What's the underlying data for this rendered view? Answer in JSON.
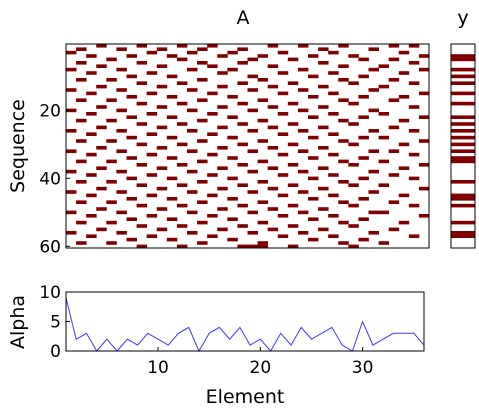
{
  "colors": {
    "cell": "#800000",
    "line": "#3b3bff",
    "axis": "#000000",
    "background": "#ffffff"
  },
  "chart_data": [
    {
      "type": "heatmap",
      "title": "A",
      "xlabel": "",
      "ylabel": "Sequence",
      "xlim": [
        0.5,
        36.5
      ],
      "ylim": [
        60.5,
        0.5
      ],
      "yticks": [
        20,
        40,
        60
      ],
      "rows": 60,
      "cols": 36,
      "cells": [
        [
          1,
          4
        ],
        [
          1,
          8
        ],
        [
          1,
          12
        ],
        [
          1,
          15
        ],
        [
          1,
          21
        ],
        [
          1,
          24
        ],
        [
          1,
          28
        ],
        [
          1,
          33
        ],
        [
          1,
          35
        ],
        [
          2,
          2
        ],
        [
          2,
          6
        ],
        [
          2,
          10
        ],
        [
          2,
          14
        ],
        [
          2,
          18
        ],
        [
          2,
          26
        ],
        [
          2,
          31
        ],
        [
          3,
          1
        ],
        [
          3,
          9
        ],
        [
          3,
          13
        ],
        [
          3,
          17
        ],
        [
          3,
          22
        ],
        [
          3,
          27
        ],
        [
          3,
          34
        ],
        [
          4,
          3
        ],
        [
          4,
          7
        ],
        [
          4,
          11
        ],
        [
          4,
          16
        ],
        [
          4,
          20
        ],
        [
          4,
          25
        ],
        [
          4,
          29
        ],
        [
          4,
          36
        ],
        [
          5,
          5
        ],
        [
          5,
          12
        ],
        [
          5,
          19
        ],
        [
          5,
          23
        ],
        [
          5,
          30
        ],
        [
          5,
          33
        ],
        [
          6,
          2
        ],
        [
          6,
          8
        ],
        [
          6,
          14
        ],
        [
          6,
          18
        ],
        [
          6,
          26
        ],
        [
          6,
          35
        ],
        [
          7,
          4
        ],
        [
          7,
          10
        ],
        [
          7,
          15
        ],
        [
          7,
          21
        ],
        [
          7,
          28
        ],
        [
          7,
          32
        ],
        [
          8,
          1
        ],
        [
          8,
          6
        ],
        [
          8,
          13
        ],
        [
          8,
          17
        ],
        [
          8,
          24
        ],
        [
          8,
          31
        ],
        [
          8,
          36
        ],
        [
          9,
          3
        ],
        [
          9,
          9
        ],
        [
          9,
          16
        ],
        [
          9,
          22
        ],
        [
          9,
          27
        ],
        [
          9,
          34
        ],
        [
          10,
          7
        ],
        [
          10,
          11
        ],
        [
          10,
          19
        ],
        [
          10,
          25
        ],
        [
          10,
          30
        ],
        [
          11,
          2
        ],
        [
          11,
          5
        ],
        [
          11,
          14
        ],
        [
          11,
          20
        ],
        [
          11,
          28
        ],
        [
          11,
          33
        ],
        [
          12,
          8
        ],
        [
          12,
          12
        ],
        [
          12,
          18
        ],
        [
          12,
          23
        ],
        [
          12,
          29
        ],
        [
          12,
          35
        ],
        [
          13,
          4
        ],
        [
          13,
          10
        ],
        [
          13,
          16
        ],
        [
          13,
          21
        ],
        [
          13,
          26
        ],
        [
          13,
          32
        ],
        [
          14,
          1
        ],
        [
          14,
          6
        ],
        [
          14,
          13
        ],
        [
          14,
          19
        ],
        [
          14,
          24
        ],
        [
          14,
          31
        ],
        [
          15,
          3
        ],
        [
          15,
          9
        ],
        [
          15,
          15
        ],
        [
          15,
          22
        ],
        [
          15,
          27
        ],
        [
          15,
          36
        ],
        [
          16,
          7
        ],
        [
          16,
          11
        ],
        [
          16,
          17
        ],
        [
          16,
          25
        ],
        [
          16,
          30
        ],
        [
          16,
          34
        ],
        [
          17,
          2
        ],
        [
          17,
          5
        ],
        [
          17,
          14
        ],
        [
          17,
          20
        ],
        [
          17,
          28
        ],
        [
          17,
          33
        ],
        [
          18,
          8
        ],
        [
          18,
          12
        ],
        [
          18,
          18
        ],
        [
          18,
          23
        ],
        [
          18,
          29
        ],
        [
          19,
          4
        ],
        [
          19,
          10
        ],
        [
          19,
          16
        ],
        [
          19,
          21
        ],
        [
          19,
          26
        ],
        [
          19,
          35
        ],
        [
          20,
          1
        ],
        [
          20,
          6
        ],
        [
          20,
          13
        ],
        [
          20,
          19
        ],
        [
          20,
          24
        ],
        [
          20,
          31
        ],
        [
          21,
          3
        ],
        [
          21,
          9
        ],
        [
          21,
          15
        ],
        [
          21,
          22
        ],
        [
          21,
          27
        ],
        [
          21,
          32
        ],
        [
          22,
          7
        ],
        [
          22,
          11
        ],
        [
          22,
          17
        ],
        [
          22,
          25
        ],
        [
          22,
          30
        ],
        [
          22,
          36
        ],
        [
          23,
          2
        ],
        [
          23,
          5
        ],
        [
          23,
          14
        ],
        [
          23,
          20
        ],
        [
          23,
          28
        ],
        [
          23,
          34
        ],
        [
          24,
          8
        ],
        [
          24,
          12
        ],
        [
          24,
          18
        ],
        [
          24,
          23
        ],
        [
          24,
          29
        ],
        [
          25,
          4
        ],
        [
          25,
          10
        ],
        [
          25,
          16
        ],
        [
          25,
          21
        ],
        [
          25,
          26
        ],
        [
          25,
          33
        ],
        [
          26,
          1
        ],
        [
          26,
          6
        ],
        [
          26,
          13
        ],
        [
          26,
          19
        ],
        [
          26,
          24
        ],
        [
          26,
          31
        ],
        [
          26,
          35
        ],
        [
          27,
          3
        ],
        [
          27,
          9
        ],
        [
          27,
          15
        ],
        [
          27,
          22
        ],
        [
          27,
          27
        ],
        [
          28,
          7
        ],
        [
          28,
          11
        ],
        [
          28,
          17
        ],
        [
          28,
          25
        ],
        [
          28,
          30
        ],
        [
          28,
          32
        ],
        [
          29,
          2
        ],
        [
          29,
          5
        ],
        [
          29,
          14
        ],
        [
          29,
          20
        ],
        [
          29,
          28
        ],
        [
          29,
          36
        ],
        [
          30,
          8
        ],
        [
          30,
          12
        ],
        [
          30,
          18
        ],
        [
          30,
          23
        ],
        [
          30,
          29
        ],
        [
          30,
          34
        ],
        [
          31,
          4
        ],
        [
          31,
          10
        ],
        [
          31,
          16
        ],
        [
          31,
          21
        ],
        [
          31,
          26
        ],
        [
          32,
          1
        ],
        [
          32,
          6
        ],
        [
          32,
          13
        ],
        [
          32,
          19
        ],
        [
          32,
          24
        ],
        [
          32,
          31
        ],
        [
          32,
          33
        ],
        [
          33,
          3
        ],
        [
          33,
          9
        ],
        [
          33,
          15
        ],
        [
          33,
          22
        ],
        [
          33,
          27
        ],
        [
          33,
          35
        ],
        [
          34,
          7
        ],
        [
          34,
          11
        ],
        [
          34,
          17
        ],
        [
          34,
          25
        ],
        [
          34,
          30
        ],
        [
          35,
          2
        ],
        [
          35,
          5
        ],
        [
          35,
          14
        ],
        [
          35,
          20
        ],
        [
          35,
          28
        ],
        [
          35,
          32
        ],
        [
          36,
          8
        ],
        [
          36,
          12
        ],
        [
          36,
          18
        ],
        [
          36,
          23
        ],
        [
          36,
          29
        ],
        [
          36,
          36
        ],
        [
          37,
          4
        ],
        [
          37,
          10
        ],
        [
          37,
          16
        ],
        [
          37,
          21
        ],
        [
          37,
          26
        ],
        [
          37,
          34
        ],
        [
          38,
          1
        ],
        [
          38,
          6
        ],
        [
          38,
          13
        ],
        [
          38,
          19
        ],
        [
          38,
          24
        ],
        [
          38,
          31
        ],
        [
          39,
          3
        ],
        [
          39,
          9
        ],
        [
          39,
          15
        ],
        [
          39,
          22
        ],
        [
          39,
          27
        ],
        [
          39,
          33
        ],
        [
          40,
          7
        ],
        [
          40,
          11
        ],
        [
          40,
          17
        ],
        [
          40,
          25
        ],
        [
          40,
          30
        ],
        [
          40,
          35
        ],
        [
          41,
          2
        ],
        [
          41,
          5
        ],
        [
          41,
          14
        ],
        [
          41,
          20
        ],
        [
          41,
          28
        ],
        [
          42,
          8
        ],
        [
          42,
          12
        ],
        [
          42,
          18
        ],
        [
          42,
          23
        ],
        [
          42,
          29
        ],
        [
          42,
          32
        ],
        [
          43,
          4
        ],
        [
          43,
          10
        ],
        [
          43,
          16
        ],
        [
          43,
          21
        ],
        [
          43,
          26
        ],
        [
          43,
          36
        ],
        [
          44,
          1
        ],
        [
          44,
          6
        ],
        [
          44,
          13
        ],
        [
          44,
          19
        ],
        [
          44,
          24
        ],
        [
          44,
          31
        ],
        [
          45,
          3
        ],
        [
          45,
          9
        ],
        [
          45,
          15
        ],
        [
          45,
          22
        ],
        [
          45,
          27
        ],
        [
          45,
          34
        ],
        [
          46,
          7
        ],
        [
          46,
          11
        ],
        [
          46,
          17
        ],
        [
          46,
          25
        ],
        [
          46,
          30
        ],
        [
          47,
          2
        ],
        [
          47,
          5
        ],
        [
          47,
          14
        ],
        [
          47,
          20
        ],
        [
          47,
          28
        ],
        [
          47,
          33
        ],
        [
          48,
          8
        ],
        [
          48,
          12
        ],
        [
          48,
          18
        ],
        [
          48,
          23
        ],
        [
          48,
          29
        ],
        [
          48,
          35
        ],
        [
          49,
          4
        ],
        [
          49,
          10
        ],
        [
          49,
          16
        ],
        [
          49,
          21
        ],
        [
          49,
          26
        ],
        [
          50,
          1
        ],
        [
          50,
          6
        ],
        [
          50,
          13
        ],
        [
          50,
          19
        ],
        [
          50,
          24
        ],
        [
          50,
          31
        ],
        [
          50,
          32
        ],
        [
          51,
          3
        ],
        [
          51,
          9
        ],
        [
          51,
          15
        ],
        [
          51,
          22
        ],
        [
          51,
          27
        ],
        [
          51,
          36
        ],
        [
          52,
          7
        ],
        [
          52,
          11
        ],
        [
          52,
          17
        ],
        [
          52,
          25
        ],
        [
          52,
          30
        ],
        [
          53,
          2
        ],
        [
          53,
          5
        ],
        [
          53,
          14
        ],
        [
          53,
          20
        ],
        [
          53,
          28
        ],
        [
          53,
          34
        ],
        [
          54,
          8
        ],
        [
          54,
          12
        ],
        [
          54,
          18
        ],
        [
          54,
          23
        ],
        [
          54,
          29
        ],
        [
          55,
          4
        ],
        [
          55,
          10
        ],
        [
          55,
          16
        ],
        [
          55,
          21
        ],
        [
          55,
          26
        ],
        [
          55,
          33
        ],
        [
          56,
          1
        ],
        [
          56,
          6
        ],
        [
          56,
          13
        ],
        [
          56,
          19
        ],
        [
          56,
          24
        ],
        [
          56,
          31
        ],
        [
          57,
          3
        ],
        [
          57,
          9
        ],
        [
          57,
          15
        ],
        [
          57,
          22
        ],
        [
          57,
          27
        ],
        [
          57,
          35
        ],
        [
          58,
          7
        ],
        [
          58,
          11
        ],
        [
          58,
          17
        ],
        [
          58,
          25
        ],
        [
          58,
          30
        ],
        [
          59,
          2
        ],
        [
          59,
          5
        ],
        [
          59,
          14
        ],
        [
          59,
          20
        ],
        [
          59,
          28
        ],
        [
          59,
          32
        ],
        [
          60,
          8
        ],
        [
          60,
          12
        ],
        [
          60,
          18
        ],
        [
          60,
          19
        ],
        [
          60,
          20
        ],
        [
          60,
          23
        ],
        [
          60,
          29
        ]
      ]
    },
    {
      "type": "heatmap",
      "title": "y",
      "xlabel": "",
      "ylabel": "",
      "ylim": [
        60.5,
        0.5
      ],
      "rows": 60,
      "cols": 1,
      "active_rows": [
        4,
        5,
        8,
        10,
        12,
        15,
        18,
        22,
        24,
        26,
        28,
        30,
        32,
        34,
        35,
        41,
        45,
        46,
        48,
        53,
        56,
        57
      ]
    },
    {
      "type": "line",
      "title": "",
      "xlabel": "Element",
      "ylabel": "Alpha",
      "xlim": [
        1,
        36
      ],
      "ylim": [
        0,
        10
      ],
      "xticks": [
        10,
        20,
        30
      ],
      "yticks": [
        0,
        5,
        10
      ],
      "series": [
        {
          "x": [
            1,
            2,
            3,
            4,
            5,
            6,
            7,
            8,
            9,
            10,
            11,
            12,
            13,
            14,
            15,
            16,
            17,
            18,
            19,
            20,
            21,
            22,
            23,
            24,
            25,
            26,
            27,
            28,
            29,
            30,
            31,
            32,
            33,
            34,
            35,
            36
          ],
          "values": [
            9,
            2,
            3,
            0,
            2,
            0,
            2,
            1,
            3,
            2,
            1,
            3,
            4,
            0,
            3,
            4,
            2,
            4,
            1,
            2,
            0,
            3,
            1,
            4,
            2,
            3,
            4,
            1,
            0,
            5,
            1,
            2,
            3,
            3,
            3,
            1
          ]
        }
      ]
    }
  ]
}
